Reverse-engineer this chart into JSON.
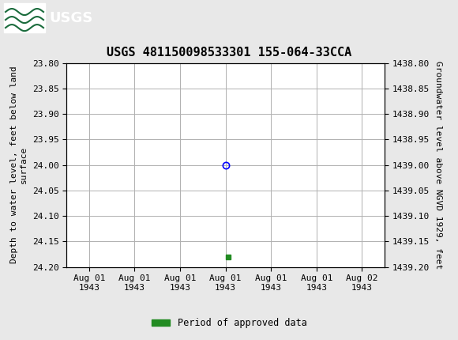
{
  "title": "USGS 481150098533301 155-064-33CCA",
  "title_fontsize": 11,
  "ylabel_left": "Depth to water level, feet below land\nsurface",
  "ylabel_right": "Groundwater level above NGVD 1929, feet",
  "ylim_left": [
    23.8,
    24.2
  ],
  "ylim_right": [
    1439.2,
    1438.8
  ],
  "yticks_left": [
    23.8,
    23.85,
    23.9,
    23.95,
    24.0,
    24.05,
    24.1,
    24.15,
    24.2
  ],
  "yticks_right": [
    1439.2,
    1439.15,
    1439.1,
    1439.05,
    1439.0,
    1438.95,
    1438.9,
    1438.85,
    1438.8
  ],
  "data_point_y": 24.0,
  "green_point_y": 24.18,
  "header_color": "#1a6b3c",
  "background_color": "#e8e8e8",
  "plot_bg_color": "#ffffff",
  "grid_color": "#b0b0b0",
  "legend_label": "Period of approved data",
  "legend_color": "#228B22",
  "tick_label_fontsize": 8,
  "axis_label_fontsize": 8,
  "x_tick_labels": [
    "Aug 01\n1943",
    "Aug 01\n1943",
    "Aug 01\n1943",
    "Aug 01\n1943",
    "Aug 01\n1943",
    "Aug 01\n1943",
    "Aug 02\n1943"
  ],
  "data_x": 3.0,
  "green_x": 3.05,
  "xlim": [
    -0.5,
    6.5
  ],
  "x_positions": [
    0,
    1,
    2,
    3,
    4,
    5,
    6
  ]
}
